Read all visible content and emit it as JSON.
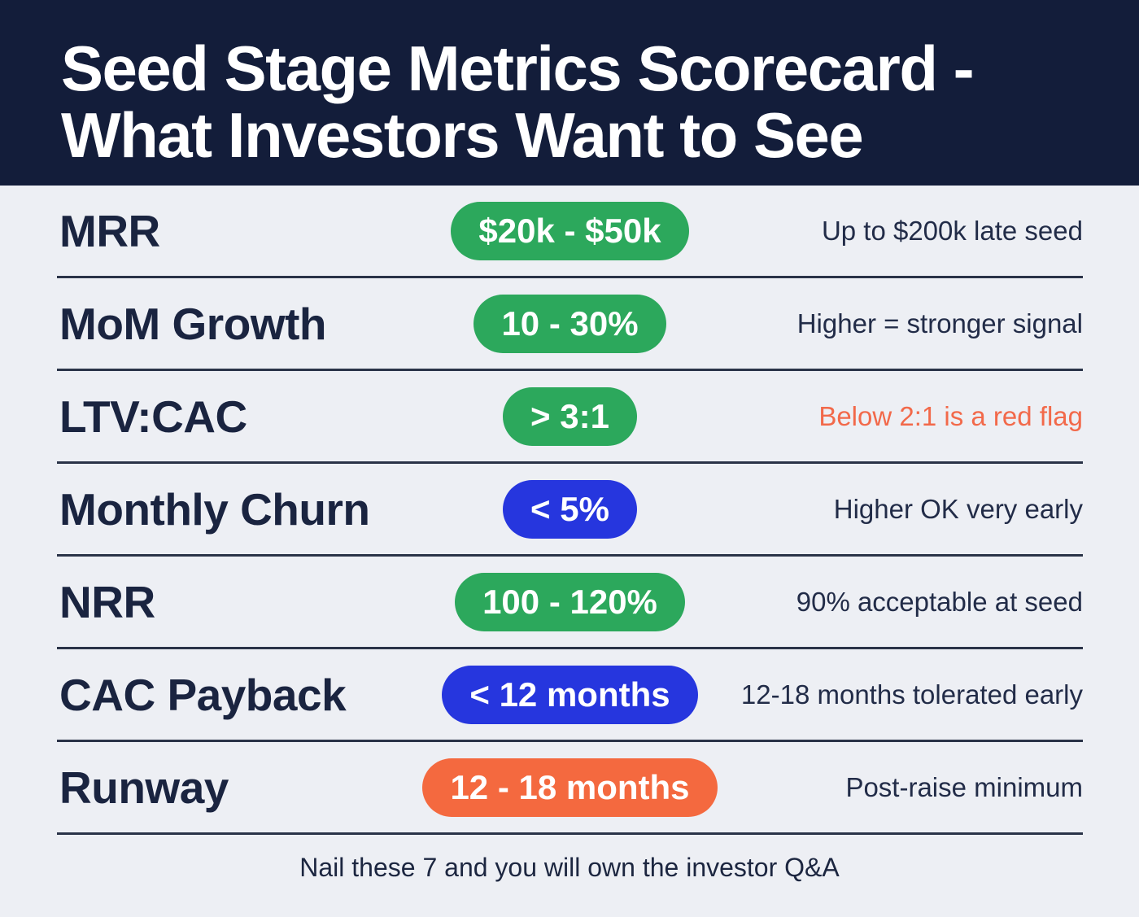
{
  "header": {
    "title_line1": "Seed Stage Metrics Scorecard -",
    "title_line2": "What Investors Want to See"
  },
  "rows": [
    {
      "label": "MRR",
      "badge": "$20k - $50k",
      "badge_color": "green",
      "note": "Up to $200k late seed",
      "note_tone": "normal"
    },
    {
      "label": "MoM Growth",
      "badge": "10 - 30%",
      "badge_color": "green",
      "note": "Higher = stronger signal",
      "note_tone": "normal"
    },
    {
      "label": "LTV:CAC",
      "badge": "> 3:1",
      "badge_color": "green",
      "note": "Below 2:1 is a red flag",
      "note_tone": "alert"
    },
    {
      "label": "Monthly Churn",
      "badge": "< 5%",
      "badge_color": "blue",
      "note": "Higher OK very early",
      "note_tone": "normal"
    },
    {
      "label": "NRR",
      "badge": "100 - 120%",
      "badge_color": "green",
      "note": "90% acceptable at seed",
      "note_tone": "normal"
    },
    {
      "label": "CAC Payback",
      "badge": "< 12 months",
      "badge_color": "blue",
      "note": "12-18 months tolerated early",
      "note_tone": "normal"
    },
    {
      "label": "Runway",
      "badge": "12 - 18 months",
      "badge_color": "orange",
      "note": "Post-raise minimum",
      "note_tone": "normal"
    }
  ],
  "footer": {
    "text": "Nail these 7 and you will own the investor Q&A"
  },
  "colors": {
    "header_bg": "#131d3a",
    "page_bg": "#edeff4",
    "badge_green": "#2ca85c",
    "badge_blue": "#2636de",
    "badge_orange": "#f4693f",
    "alert_text": "#f2694a",
    "divider": "#2a3348",
    "text": "#1a2440"
  }
}
